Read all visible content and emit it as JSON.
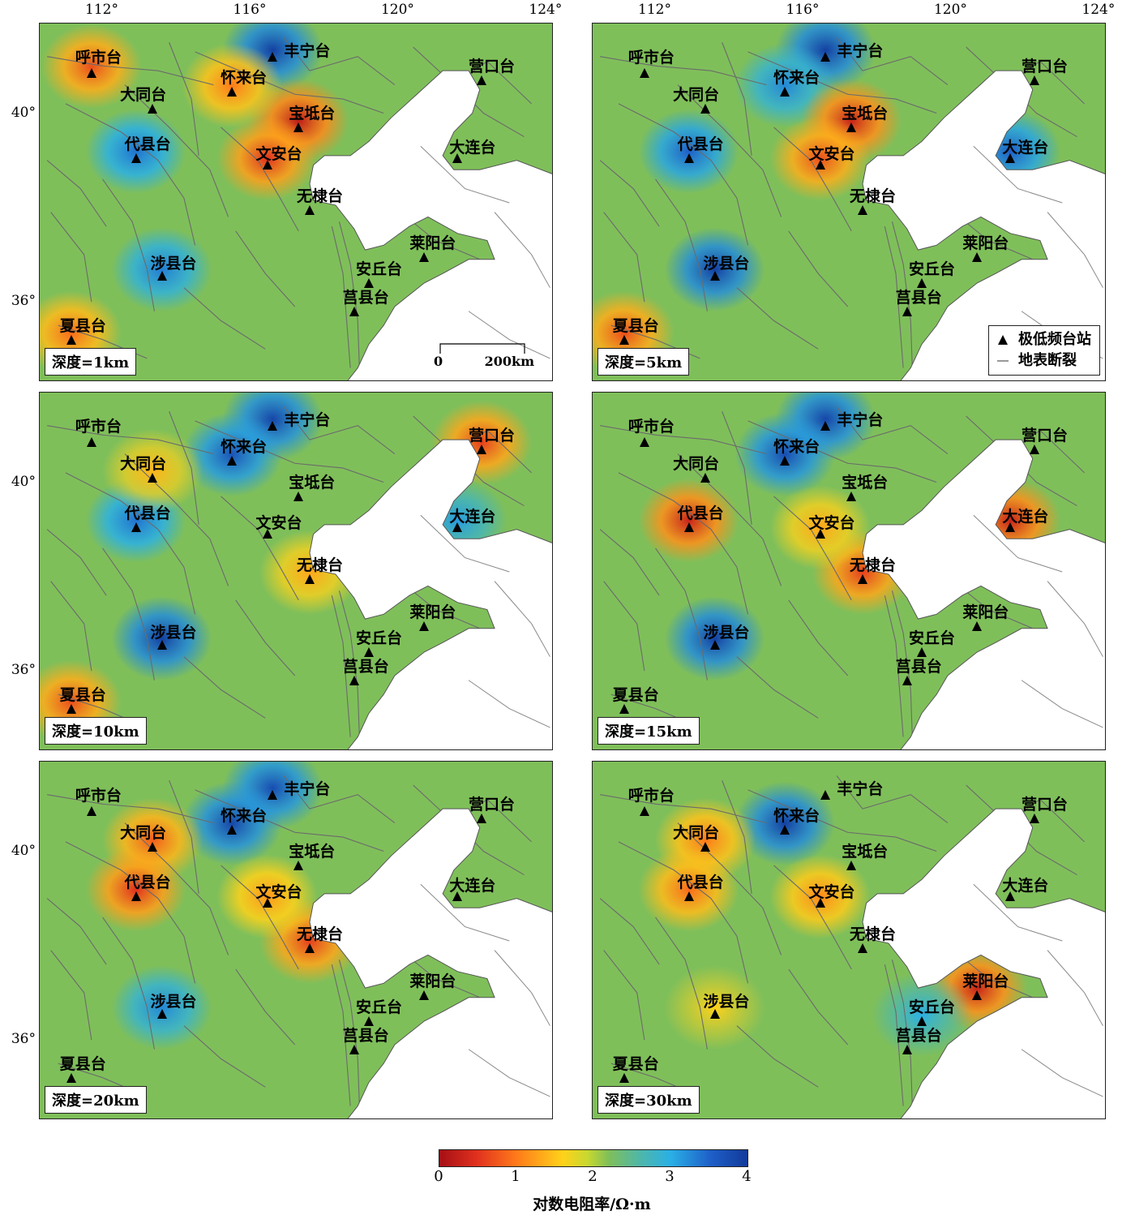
{
  "lon_ticks": [
    "112°",
    "116°",
    "120°",
    "124°"
  ],
  "lat_ticks": [
    "40°",
    "36°"
  ],
  "stations": [
    {
      "name": "呼市台",
      "lon": 111.7,
      "lat": 40.85
    },
    {
      "name": "丰宁台",
      "lon": 116.6,
      "lat": 41.2
    },
    {
      "name": "营口台",
      "lon": 122.25,
      "lat": 40.7
    },
    {
      "name": "怀来台",
      "lon": 115.5,
      "lat": 40.45
    },
    {
      "name": "大同台",
      "lon": 113.35,
      "lat": 40.1
    },
    {
      "name": "宝坻台",
      "lon": 117.3,
      "lat": 39.7
    },
    {
      "name": "大连台",
      "lon": 121.6,
      "lat": 39.05
    },
    {
      "name": "代县台",
      "lon": 112.9,
      "lat": 39.05
    },
    {
      "name": "文安台",
      "lon": 116.45,
      "lat": 38.9
    },
    {
      "name": "无棣台",
      "lon": 117.6,
      "lat": 37.95
    },
    {
      "name": "莱阳台",
      "lon": 120.7,
      "lat": 36.95
    },
    {
      "name": "涉县台",
      "lon": 113.6,
      "lat": 36.55
    },
    {
      "name": "安丘台",
      "lon": 119.2,
      "lat": 36.4
    },
    {
      "name": "莒县台",
      "lon": 118.8,
      "lat": 35.8
    },
    {
      "name": "夏县台",
      "lon": 111.15,
      "lat": 35.2
    }
  ],
  "panels": [
    {
      "depth_label": "深度=1km",
      "scale": {
        "zero": "0",
        "dist": "200km"
      },
      "anomalies": [
        {
          "station": "呼市台",
          "value": 0.7
        },
        {
          "station": "丰宁台",
          "value": 3.9
        },
        {
          "station": "宝坻台",
          "value": 0.2
        },
        {
          "station": "文安台",
          "value": 0.5
        },
        {
          "station": "代县台",
          "value": 3.2
        },
        {
          "station": "涉县台",
          "value": 3.1
        },
        {
          "station": "夏县台",
          "value": 0.9
        },
        {
          "station": "怀来台",
          "value": 1.0
        }
      ]
    },
    {
      "depth_label": "深度=5km",
      "legend": {
        "station": "极低频台站",
        "fault": "地表断裂"
      },
      "anomalies": [
        {
          "station": "丰宁台",
          "value": 3.9
        },
        {
          "station": "怀来台",
          "value": 3.0
        },
        {
          "station": "宝坻台",
          "value": 0.3
        },
        {
          "station": "文安台",
          "value": 0.7
        },
        {
          "station": "大连台",
          "value": 3.4
        },
        {
          "station": "代县台",
          "value": 3.4
        },
        {
          "station": "涉县台",
          "value": 3.9
        },
        {
          "station": "夏县台",
          "value": 0.7
        }
      ]
    },
    {
      "depth_label": "深度=10km",
      "anomalies": [
        {
          "station": "丰宁台",
          "value": 3.8
        },
        {
          "station": "怀来台",
          "value": 3.6
        },
        {
          "station": "营口台",
          "value": 0.6
        },
        {
          "station": "大连台",
          "value": 2.8
        },
        {
          "station": "代县台",
          "value": 3.2
        },
        {
          "station": "涉县台",
          "value": 3.9
        },
        {
          "station": "夏县台",
          "value": 0.7
        },
        {
          "station": "无棣台",
          "value": 1.3
        },
        {
          "station": "大同台",
          "value": 1.4
        }
      ]
    },
    {
      "depth_label": "深度=15km",
      "anomalies": [
        {
          "station": "丰宁台",
          "value": 3.8
        },
        {
          "station": "怀来台",
          "value": 3.7
        },
        {
          "station": "代县台",
          "value": 0.3
        },
        {
          "station": "大连台",
          "value": 0.3
        },
        {
          "station": "无棣台",
          "value": 0.6
        },
        {
          "station": "涉县台",
          "value": 3.9
        },
        {
          "station": "文安台",
          "value": 1.3
        }
      ]
    },
    {
      "depth_label": "深度=20km",
      "anomalies": [
        {
          "station": "丰宁台",
          "value": 3.7
        },
        {
          "station": "怀来台",
          "value": 3.8
        },
        {
          "station": "大同台",
          "value": 0.8
        },
        {
          "station": "代县台",
          "value": 0.5
        },
        {
          "station": "无棣台",
          "value": 0.6
        },
        {
          "station": "涉县台",
          "value": 3.0
        },
        {
          "station": "文安台",
          "value": 1.2
        }
      ]
    },
    {
      "depth_label": "深度=30km",
      "anomalies": [
        {
          "station": "怀来台",
          "value": 3.9
        },
        {
          "station": "大同台",
          "value": 1.0
        },
        {
          "station": "代县台",
          "value": 0.9
        },
        {
          "station": "文安台",
          "value": 1.1
        },
        {
          "station": "莱阳台",
          "value": 0.3
        },
        {
          "station": "涉县台",
          "value": 1.6
        },
        {
          "station": "安丘台",
          "value": 2.6
        }
      ]
    }
  ],
  "colorbar": {
    "ticks": [
      "0",
      "1",
      "2",
      "3",
      "4"
    ],
    "label": "对数电阻率/Ω·m",
    "colors": [
      "#a50f15",
      "#ff7a1a",
      "#ffd21a",
      "#7fbf5a",
      "#2ab0e6",
      "#123a9a"
    ]
  }
}
